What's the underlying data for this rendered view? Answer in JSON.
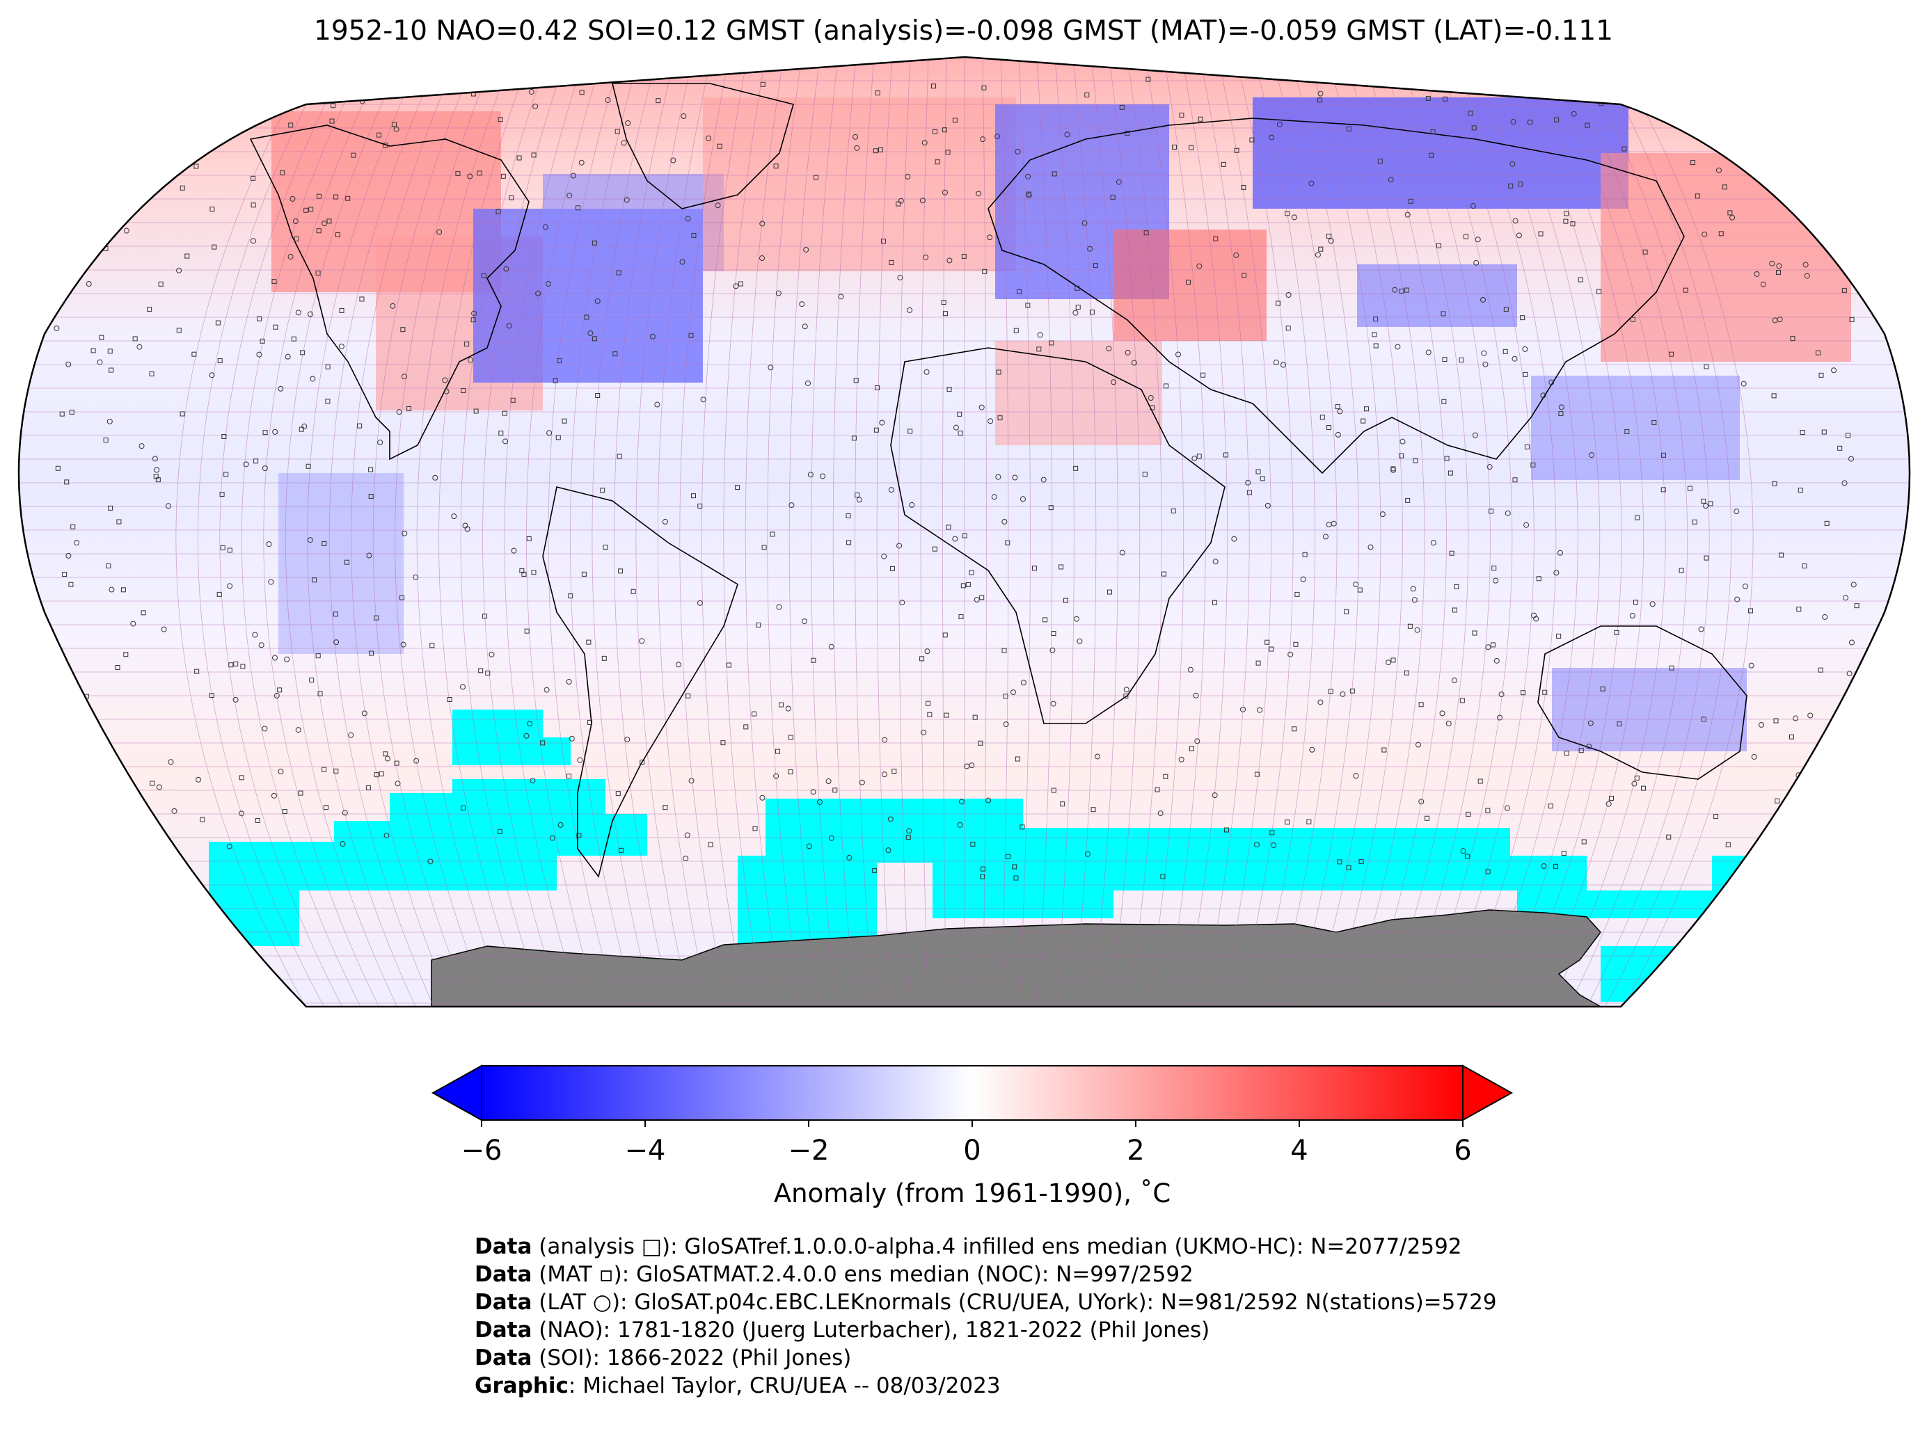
{
  "title": "1952-10 NAO=0.42 SOI=0.12 GMST (analysis)=-0.098 GMST (MAT)=-0.059 GMST (LAT)=-0.111",
  "colorbar": {
    "label": "Anomaly (from 1961-1990), ˚C",
    "ticks": [
      "−6",
      "−4",
      "−2",
      "0",
      "2",
      "4",
      "6"
    ],
    "min": -6,
    "max": 6,
    "colors": {
      "cold": "#0000ff",
      "neutral": "#ffffff",
      "warm": "#ff0000",
      "missing": "#00ffff",
      "land_ice": "#808080"
    }
  },
  "credits": [
    {
      "key": "Data",
      "text": " (analysis □): GloSATref.1.0.0.0-alpha.4 infilled ens median (UKMO-HC): N=2077/2592"
    },
    {
      "key": "Data",
      "text": " (MAT ▫): GloSATMAT.2.4.0.0 ens median (NOC): N=997/2592"
    },
    {
      "key": "Data",
      "text": " (LAT ○): GloSAT.p04c.EBC.LEKnormals (CRU/UEA, UYork): N=981/2592 N(stations)=5729"
    },
    {
      "key": "Data",
      "text": " (NAO): 1781-1820 (Juerg Luterbacher), 1821-2022 (Phil Jones)"
    },
    {
      "key": "Data",
      "text": " (SOI): 1866-2022 (Phil Jones)"
    },
    {
      "key": "Graphic",
      "text": ": Michael Taylor, CRU/UEA -- 08/03/2023"
    }
  ]
}
